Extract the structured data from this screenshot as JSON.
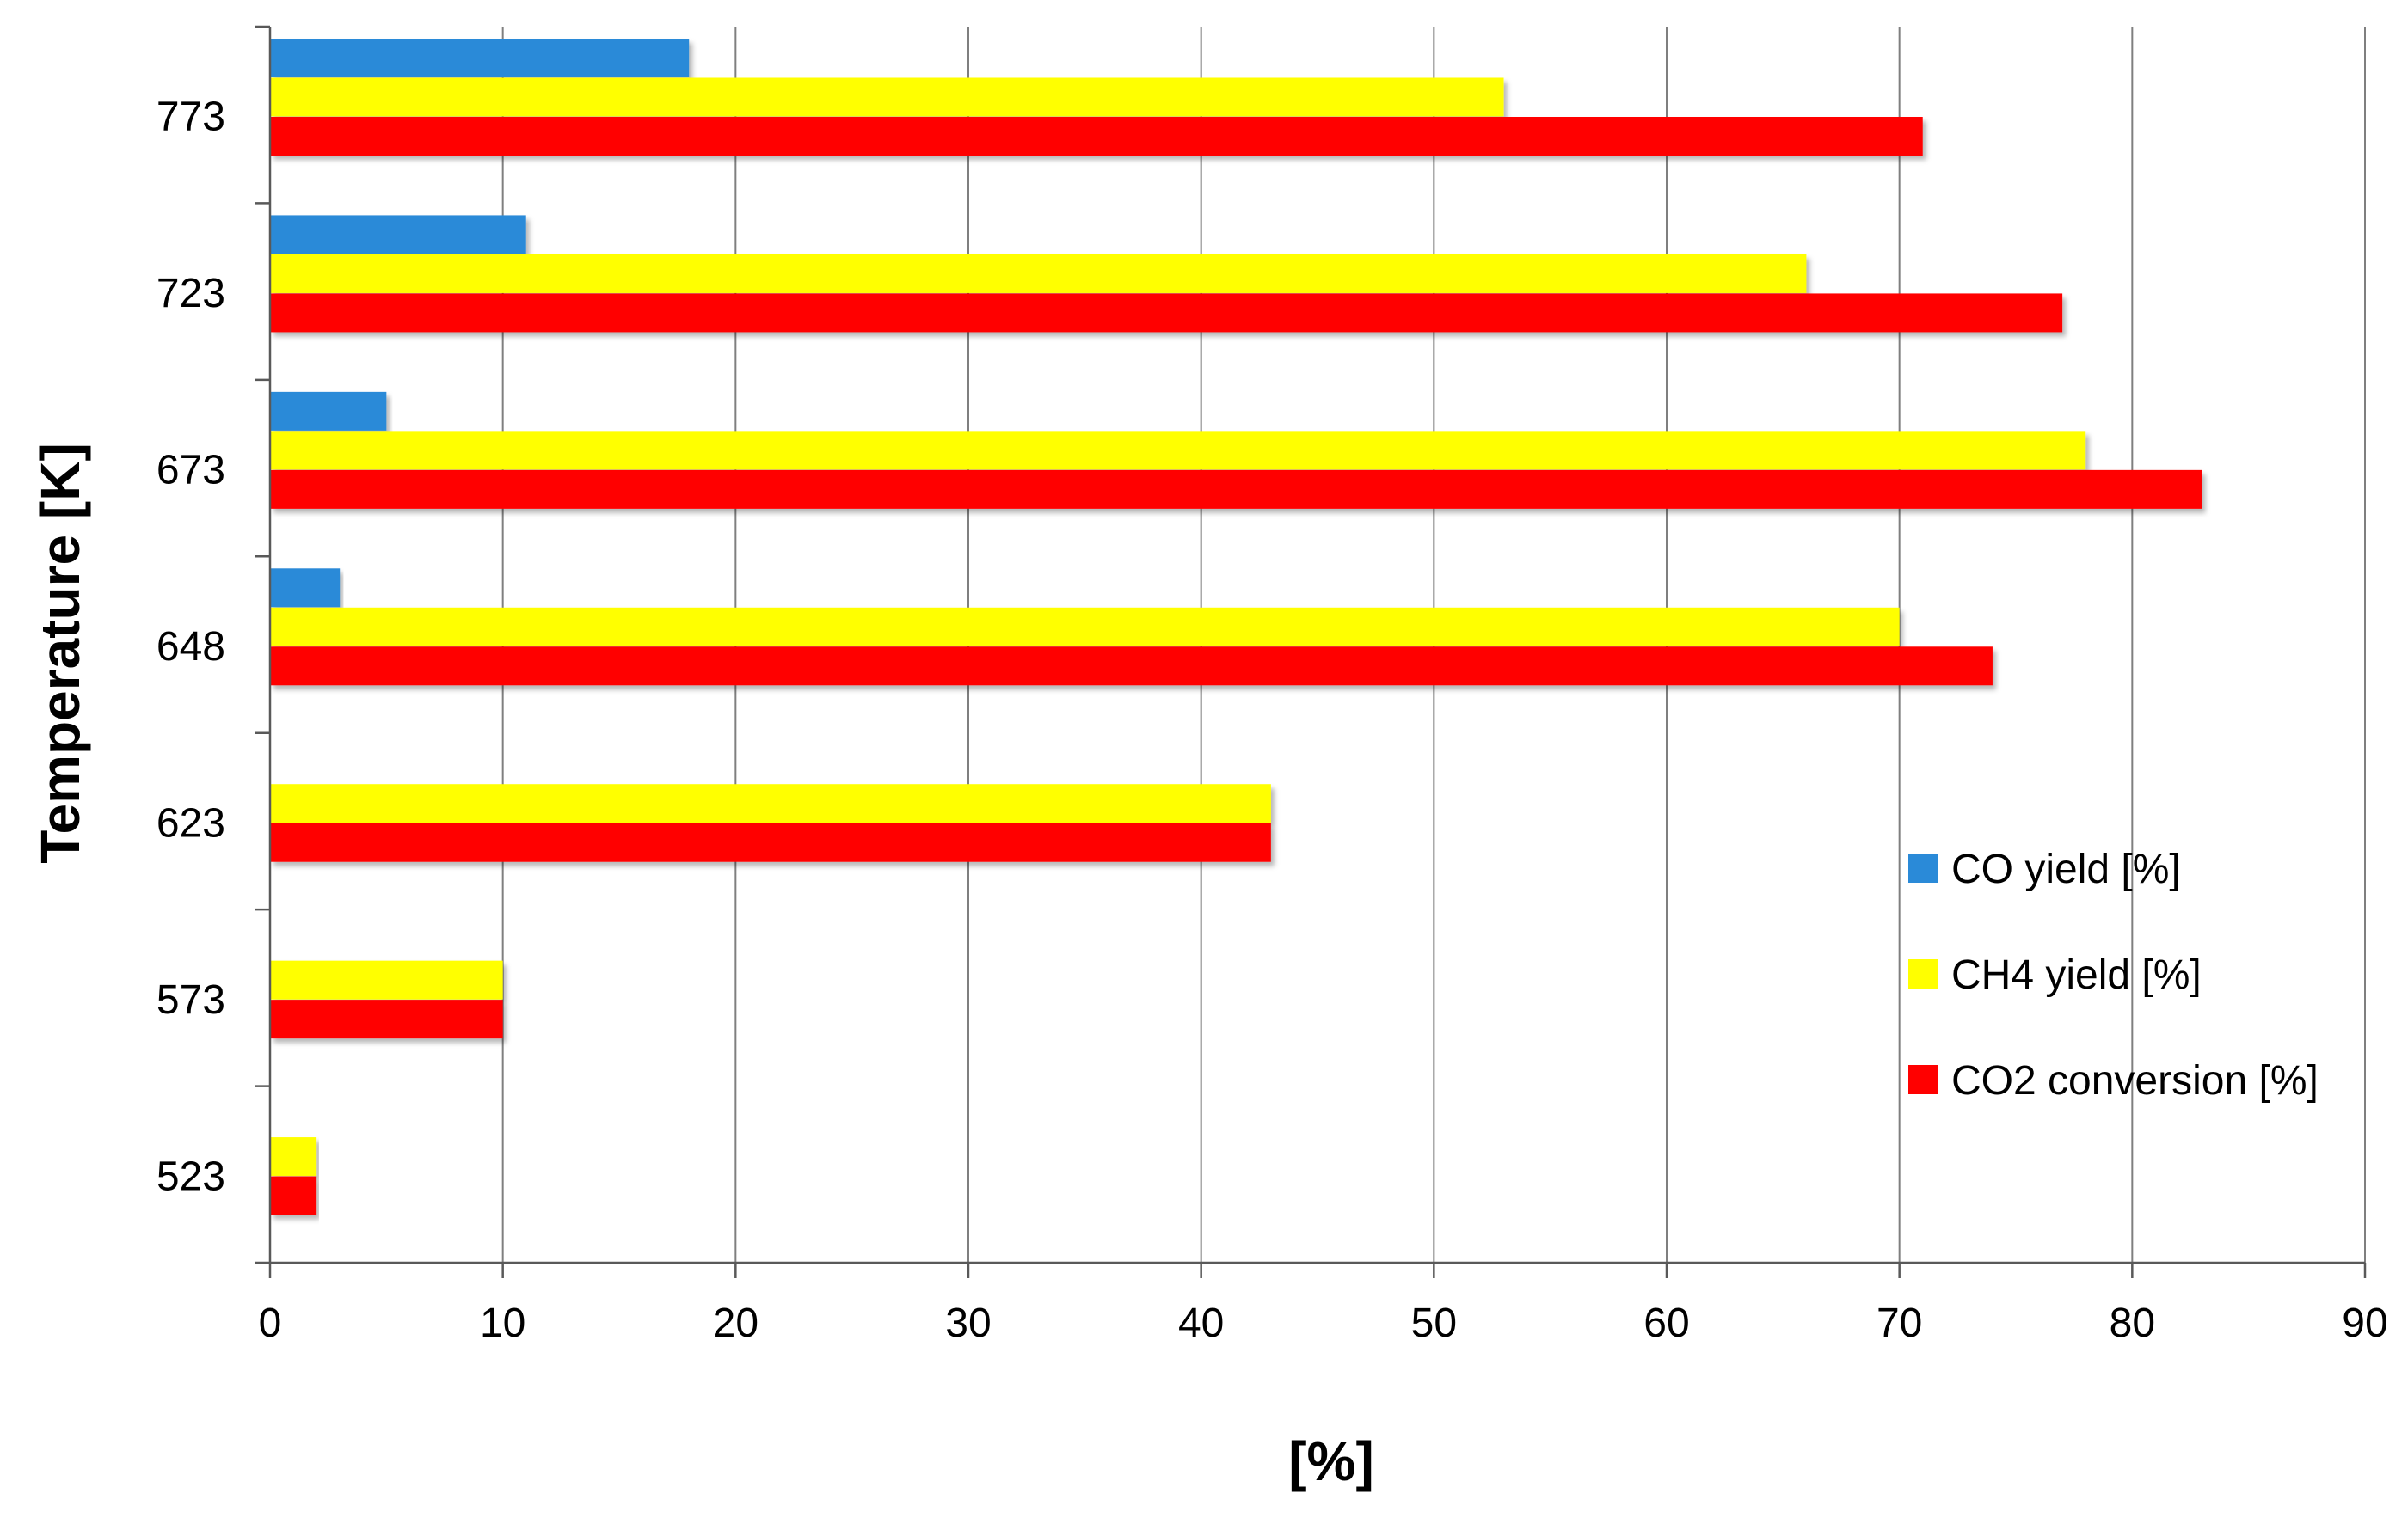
{
  "chart_data": {
    "type": "bar",
    "orientation": "horizontal",
    "title": "",
    "xlabel": "[%]",
    "ylabel": "Temperature [K]",
    "xlim": [
      0,
      90
    ],
    "x_ticks": [
      0,
      10,
      20,
      30,
      40,
      50,
      60,
      70,
      80,
      90
    ],
    "grid": "vertical",
    "legend_position": "right",
    "categories": [
      "773",
      "723",
      "673",
      "648",
      "623",
      "573",
      "523"
    ],
    "series": [
      {
        "name": "CO yield [%]",
        "color": "#2a8ad8",
        "values": [
          18,
          11,
          5,
          3,
          null,
          null,
          null
        ]
      },
      {
        "name": "CH4 yield [%]",
        "color": "#ffff00",
        "values": [
          53,
          66,
          78,
          70,
          43,
          10,
          2
        ]
      },
      {
        "name": "CO2 conversion [%]",
        "color": "#ff0000",
        "values": [
          71,
          77,
          83,
          74,
          43,
          10,
          2
        ]
      }
    ]
  }
}
